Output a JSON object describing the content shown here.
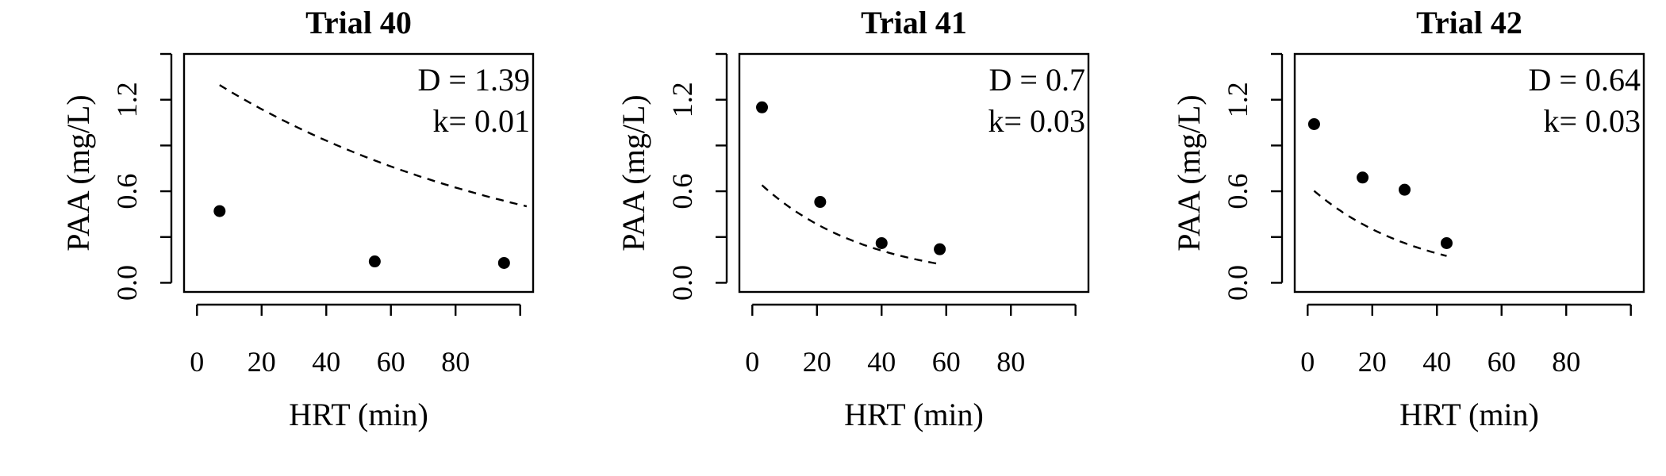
{
  "chart_data": [
    {
      "type": "scatter",
      "title": "Trial 40",
      "xlabel": "HRT (min)",
      "ylabel": "PAA (mg/L)",
      "xlim": [
        -4,
        104
      ],
      "ylim": [
        -0.06,
        1.5
      ],
      "xticks": [
        0,
        20,
        40,
        60,
        80,
        100
      ],
      "xtick_labels": [
        "0",
        "20",
        "40",
        "60",
        "80"
      ],
      "yticks": [
        0.0,
        0.3,
        0.6,
        0.9,
        1.2,
        1.5
      ],
      "ytick_labels": [
        "0.0",
        "0.6",
        "1.2"
      ],
      "points": {
        "x": [
          7,
          55,
          95
        ],
        "y": [
          0.47,
          0.14,
          0.13
        ]
      },
      "fit": {
        "style": "dashed",
        "x_range": [
          7,
          102
        ],
        "D": 1.39,
        "k": 0.01
      },
      "annotations": [
        "D = 1.39",
        "k= 0.01"
      ]
    },
    {
      "type": "scatter",
      "title": "Trial 41",
      "xlabel": "HRT (min)",
      "ylabel": "PAA (mg/L)",
      "xlim": [
        -4,
        104
      ],
      "ylim": [
        -0.06,
        1.5
      ],
      "xticks": [
        0,
        20,
        40,
        60,
        80,
        100
      ],
      "xtick_labels": [
        "0",
        "20",
        "40",
        "60",
        "80"
      ],
      "yticks": [
        0.0,
        0.3,
        0.6,
        0.9,
        1.2,
        1.5
      ],
      "ytick_labels": [
        "0.0",
        "0.6",
        "1.2"
      ],
      "points": {
        "x": [
          3,
          21,
          40,
          58
        ],
        "y": [
          1.15,
          0.53,
          0.26,
          0.22
        ]
      },
      "fit": {
        "style": "dashed",
        "x_range": [
          3,
          58
        ],
        "D": 0.7,
        "k": 0.03
      },
      "annotations": [
        "D = 0.7",
        "k= 0.03"
      ]
    },
    {
      "type": "scatter",
      "title": "Trial 42",
      "xlabel": "HRT (min)",
      "ylabel": "PAA (mg/L)",
      "xlim": [
        -4,
        104
      ],
      "ylim": [
        -0.06,
        1.5
      ],
      "xticks": [
        0,
        20,
        40,
        60,
        80,
        100
      ],
      "xtick_labels": [
        "0",
        "20",
        "40",
        "60",
        "80"
      ],
      "yticks": [
        0.0,
        0.3,
        0.6,
        0.9,
        1.2,
        1.5
      ],
      "ytick_labels": [
        "0.0",
        "0.6",
        "1.2"
      ],
      "points": {
        "x": [
          2,
          17,
          30,
          43
        ],
        "y": [
          1.04,
          0.69,
          0.61,
          0.26
        ]
      },
      "fit": {
        "style": "dashed",
        "x_range": [
          2,
          43
        ],
        "D": 0.64,
        "k": 0.03
      },
      "annotations": [
        "D = 0.64",
        "k= 0.03"
      ]
    }
  ]
}
